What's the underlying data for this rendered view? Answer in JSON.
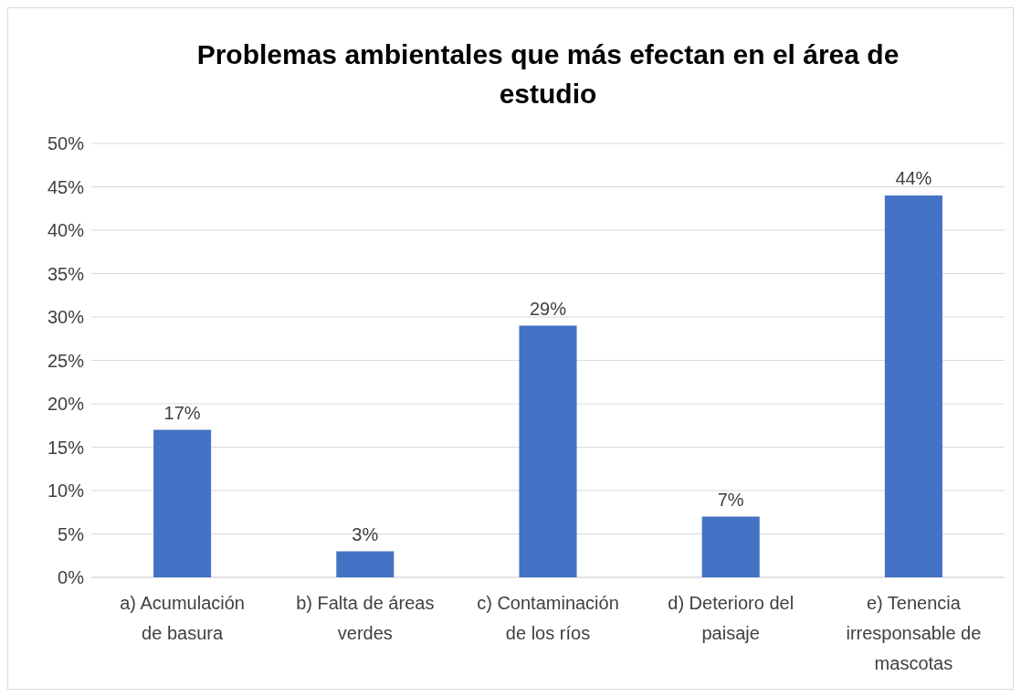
{
  "chart_data": {
    "type": "bar",
    "title": "Problemas ambientales que más efectan en el área de estudio",
    "categories": [
      "a) Acumulación de basura",
      "b) Falta de áreas verdes",
      "c) Contaminación de los ríos",
      "d) Deterioro del paisaje",
      "e) Tenencia irresponsable de mascotas"
    ],
    "values": [
      17,
      3,
      29,
      7,
      44
    ],
    "color": "#4472c4",
    "value_labels": [
      "17%",
      "3%",
      "29%",
      "7%",
      "44%"
    ],
    "ylim": [
      0,
      50
    ],
    "yticks": [
      {
        "value": 0,
        "label": "0%"
      },
      {
        "value": 5,
        "label": "5%"
      },
      {
        "value": 10,
        "label": "10%"
      },
      {
        "value": 15,
        "label": "15%"
      },
      {
        "value": 20,
        "label": "20%"
      },
      {
        "value": 25,
        "label": "25%"
      },
      {
        "value": 30,
        "label": "30%"
      },
      {
        "value": 35,
        "label": "35%"
      },
      {
        "value": 40,
        "label": "40%"
      },
      {
        "value": 45,
        "label": "45%"
      },
      {
        "value": 50,
        "label": "50%"
      }
    ],
    "grid": "y"
  }
}
